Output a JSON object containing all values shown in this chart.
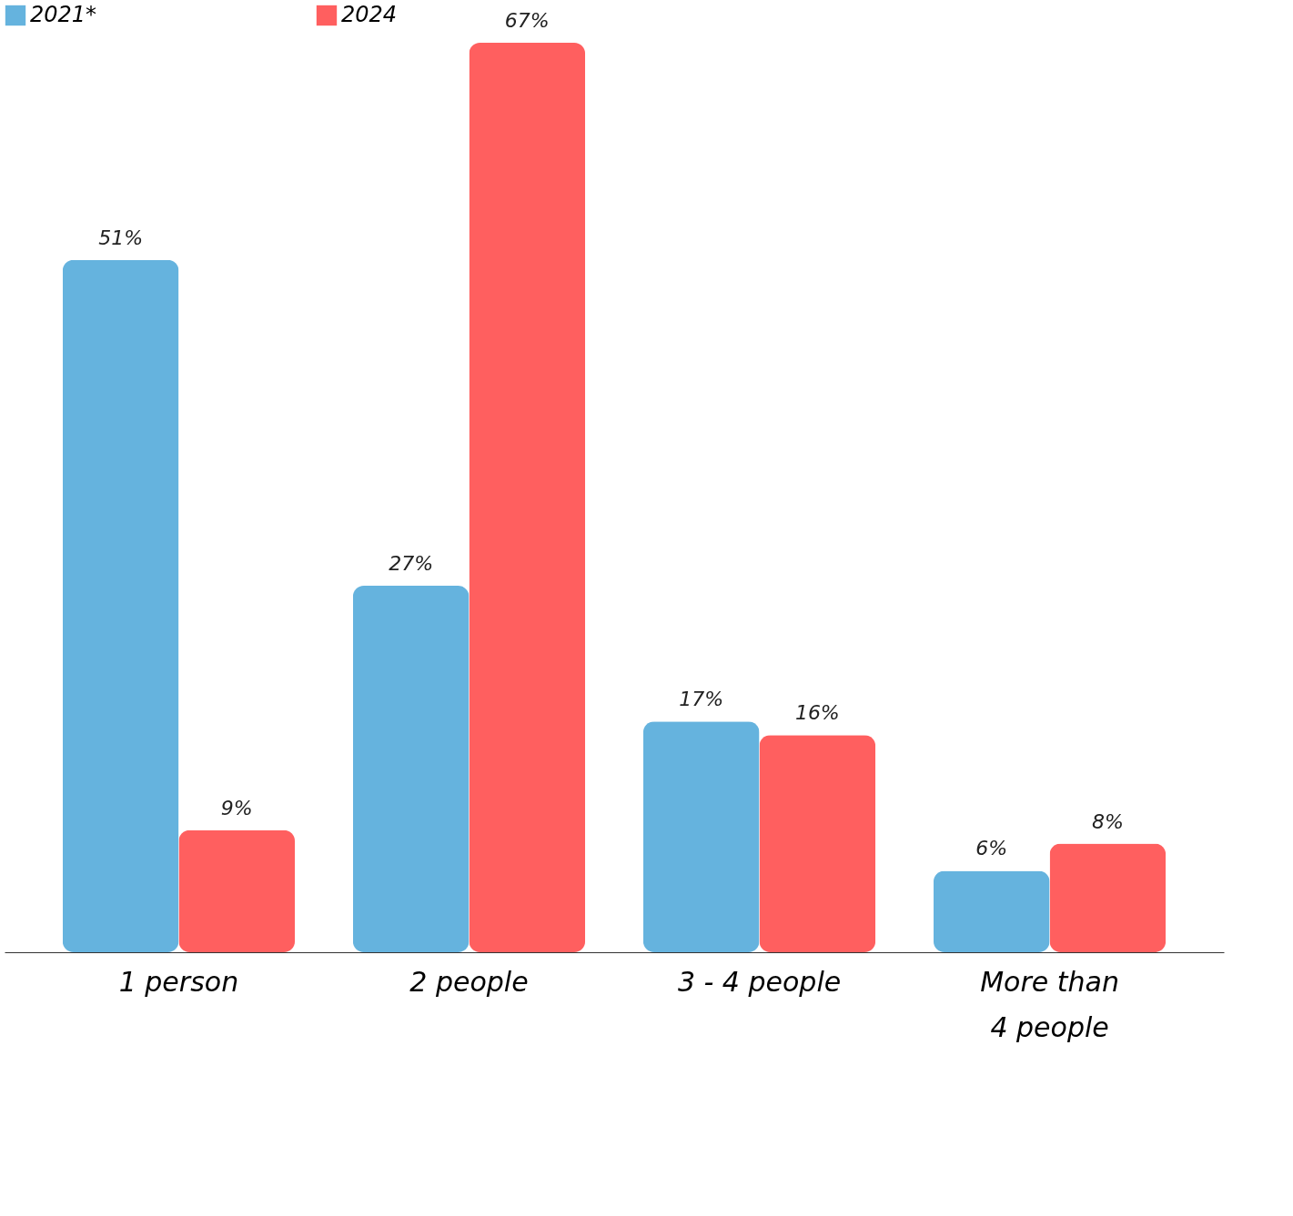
{
  "chart_data": {
    "type": "bar",
    "categories": [
      "1 person",
      "2 people",
      "3 - 4 people",
      "More than\n4 people"
    ],
    "series": [
      {
        "name": "2021*",
        "color": "#65b3de",
        "values": [
          51,
          27,
          17,
          6
        ],
        "value_labels": [
          "51%",
          "27%",
          "17%",
          "6%"
        ]
      },
      {
        "name": "2024",
        "color": "#ff5f5f",
        "values": [
          9,
          67,
          16,
          8
        ],
        "value_labels": [
          "9%",
          "67%",
          "16%",
          "8%"
        ]
      }
    ],
    "legend": "top",
    "grid": false
  }
}
